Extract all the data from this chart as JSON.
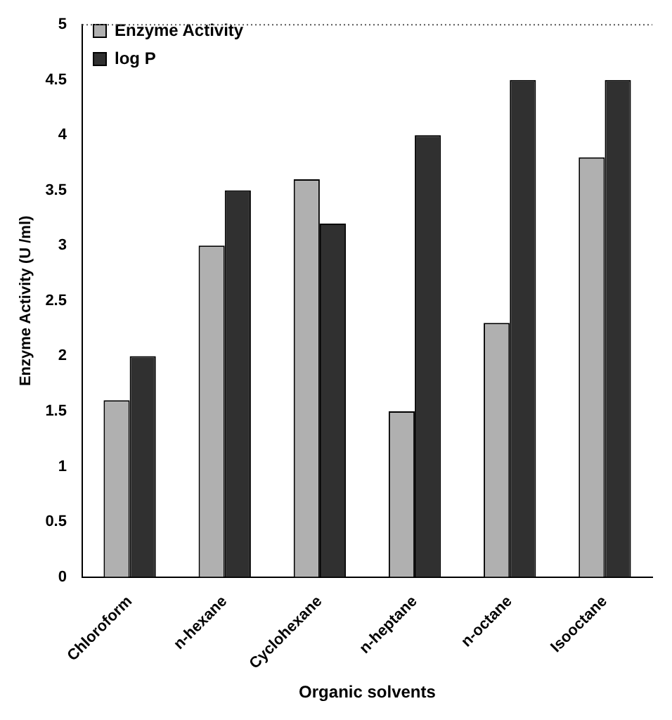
{
  "chart_data": {
    "type": "bar",
    "xlabel": "Organic solvents",
    "ylabel": "Enzyme Activity (U /ml)",
    "categories": [
      "Chloroform",
      "n-hexane",
      "Cyclohexane",
      "n-heptane",
      "n-octane",
      "Isooctane"
    ],
    "series": [
      {
        "name": "Enzyme Activity",
        "color": "#b0b0b0",
        "values": [
          1.6,
          3.0,
          3.6,
          1.5,
          2.3,
          3.8
        ]
      },
      {
        "name": "log P",
        "color": "#303030",
        "values": [
          2.0,
          3.5,
          3.2,
          4.0,
          4.5,
          4.5
        ]
      }
    ],
    "ylim": [
      0,
      5
    ],
    "yticks": [
      0,
      0.5,
      1,
      1.5,
      2,
      2.5,
      3,
      3.5,
      4,
      4.5,
      5
    ],
    "grid": false,
    "legend": "top left"
  }
}
